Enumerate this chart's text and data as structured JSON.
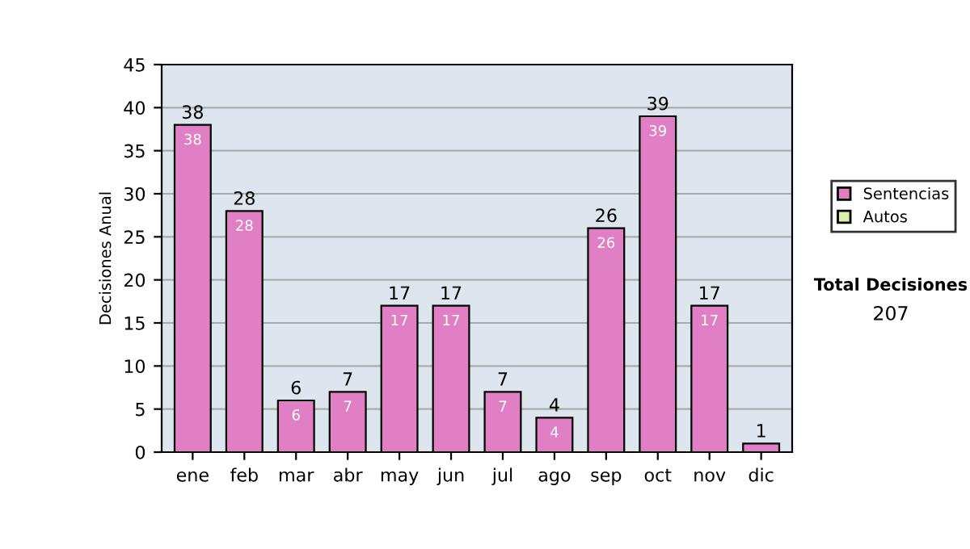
{
  "chart_data": {
    "type": "bar",
    "ylabel": "Decisiones Anual",
    "categories": [
      "ene",
      "feb",
      "mar",
      "abr",
      "may",
      "jun",
      "jul",
      "ago",
      "sep",
      "oct",
      "nov",
      "dic"
    ],
    "series": [
      {
        "name": "Sentencias",
        "color": "#e07fc4",
        "values": [
          38,
          28,
          6,
          7,
          17,
          17,
          7,
          4,
          26,
          39,
          17,
          1
        ],
        "value_labels": [
          "38",
          "28",
          "6",
          "7",
          "17",
          "17",
          "7",
          "4",
          "26",
          "39",
          "17",
          null
        ]
      },
      {
        "name": "Autos",
        "color": "#d8f0a8",
        "values": [
          0,
          0,
          0,
          0,
          0,
          0,
          0,
          0,
          0,
          0,
          0,
          0
        ]
      }
    ],
    "stacked": true,
    "totals": [
      "38",
      "28",
      "6",
      "7",
      "17",
      "17",
      "7",
      "4",
      "26",
      "39",
      "17",
      "1"
    ],
    "ylim": [
      0,
      45
    ],
    "yticks": [
      0,
      5,
      10,
      15,
      20,
      25,
      30,
      35,
      40,
      45
    ],
    "grid": "y",
    "legend": "right",
    "annotations": [
      "Total Decisiones",
      "207"
    ]
  }
}
